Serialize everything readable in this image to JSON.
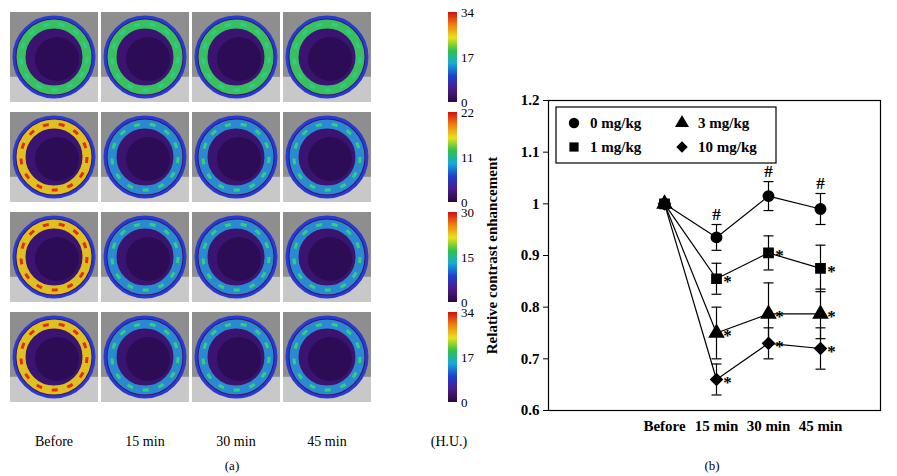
{
  "panel_a": {
    "label": "(a)",
    "columns": [
      "Before",
      "15 min",
      "30 min",
      "45 min"
    ],
    "unit": "(H.U.)",
    "rows": [
      {
        "colorbar": {
          "range": [
            0,
            34
          ],
          "ticks": [
            0,
            17,
            34
          ]
        }
      },
      {
        "colorbar": {
          "range": [
            0,
            22
          ],
          "ticks": [
            0,
            11,
            22
          ]
        }
      },
      {
        "colorbar": {
          "range": [
            0,
            30
          ],
          "ticks": [
            0,
            15,
            30
          ]
        }
      },
      {
        "colorbar": {
          "range": [
            0,
            34
          ],
          "ticks": [
            0,
            17,
            34
          ]
        }
      }
    ]
  },
  "chart_data": {
    "type": "line",
    "label": "(b)",
    "y_label": "Relative contrast enhancement",
    "categories": [
      "Before",
      "15 min",
      "30 min",
      "45 min"
    ],
    "ylim": [
      0.6,
      1.2
    ],
    "yticks": [
      0.6,
      0.7,
      0.8,
      0.9,
      1,
      1.1,
      1.2
    ],
    "legend": "upper left",
    "series": [
      {
        "name": "0 mg/kg",
        "marker": "circle",
        "color": "#000000",
        "values": [
          1,
          0.935,
          1.015,
          0.99
        ],
        "errors": [
          null,
          0.025,
          0.028,
          0.03
        ],
        "annotations": [
          null,
          "#",
          "#",
          "#"
        ]
      },
      {
        "name": "1 mg/kg",
        "marker": "square",
        "color": "#000000",
        "values": [
          1,
          0.855,
          0.905,
          0.875
        ],
        "errors": [
          null,
          0.03,
          0.033,
          0.045
        ],
        "annotations": [
          null,
          "*",
          "*",
          "*"
        ]
      },
      {
        "name": "3 mg/kg",
        "marker": "triangle",
        "color": "#000000",
        "values": [
          1,
          0.75,
          0.787,
          0.787
        ],
        "errors": [
          null,
          0.05,
          0.06,
          0.048
        ],
        "annotations": [
          null,
          "*",
          "*",
          "*"
        ]
      },
      {
        "name": "10 mg/kg",
        "marker": "diamond",
        "color": "#000000",
        "values": [
          1,
          0.66,
          0.73,
          0.72
        ],
        "errors": [
          null,
          0.03,
          0.03,
          0.04
        ],
        "annotations": [
          null,
          "*",
          "*",
          "*"
        ]
      }
    ]
  }
}
